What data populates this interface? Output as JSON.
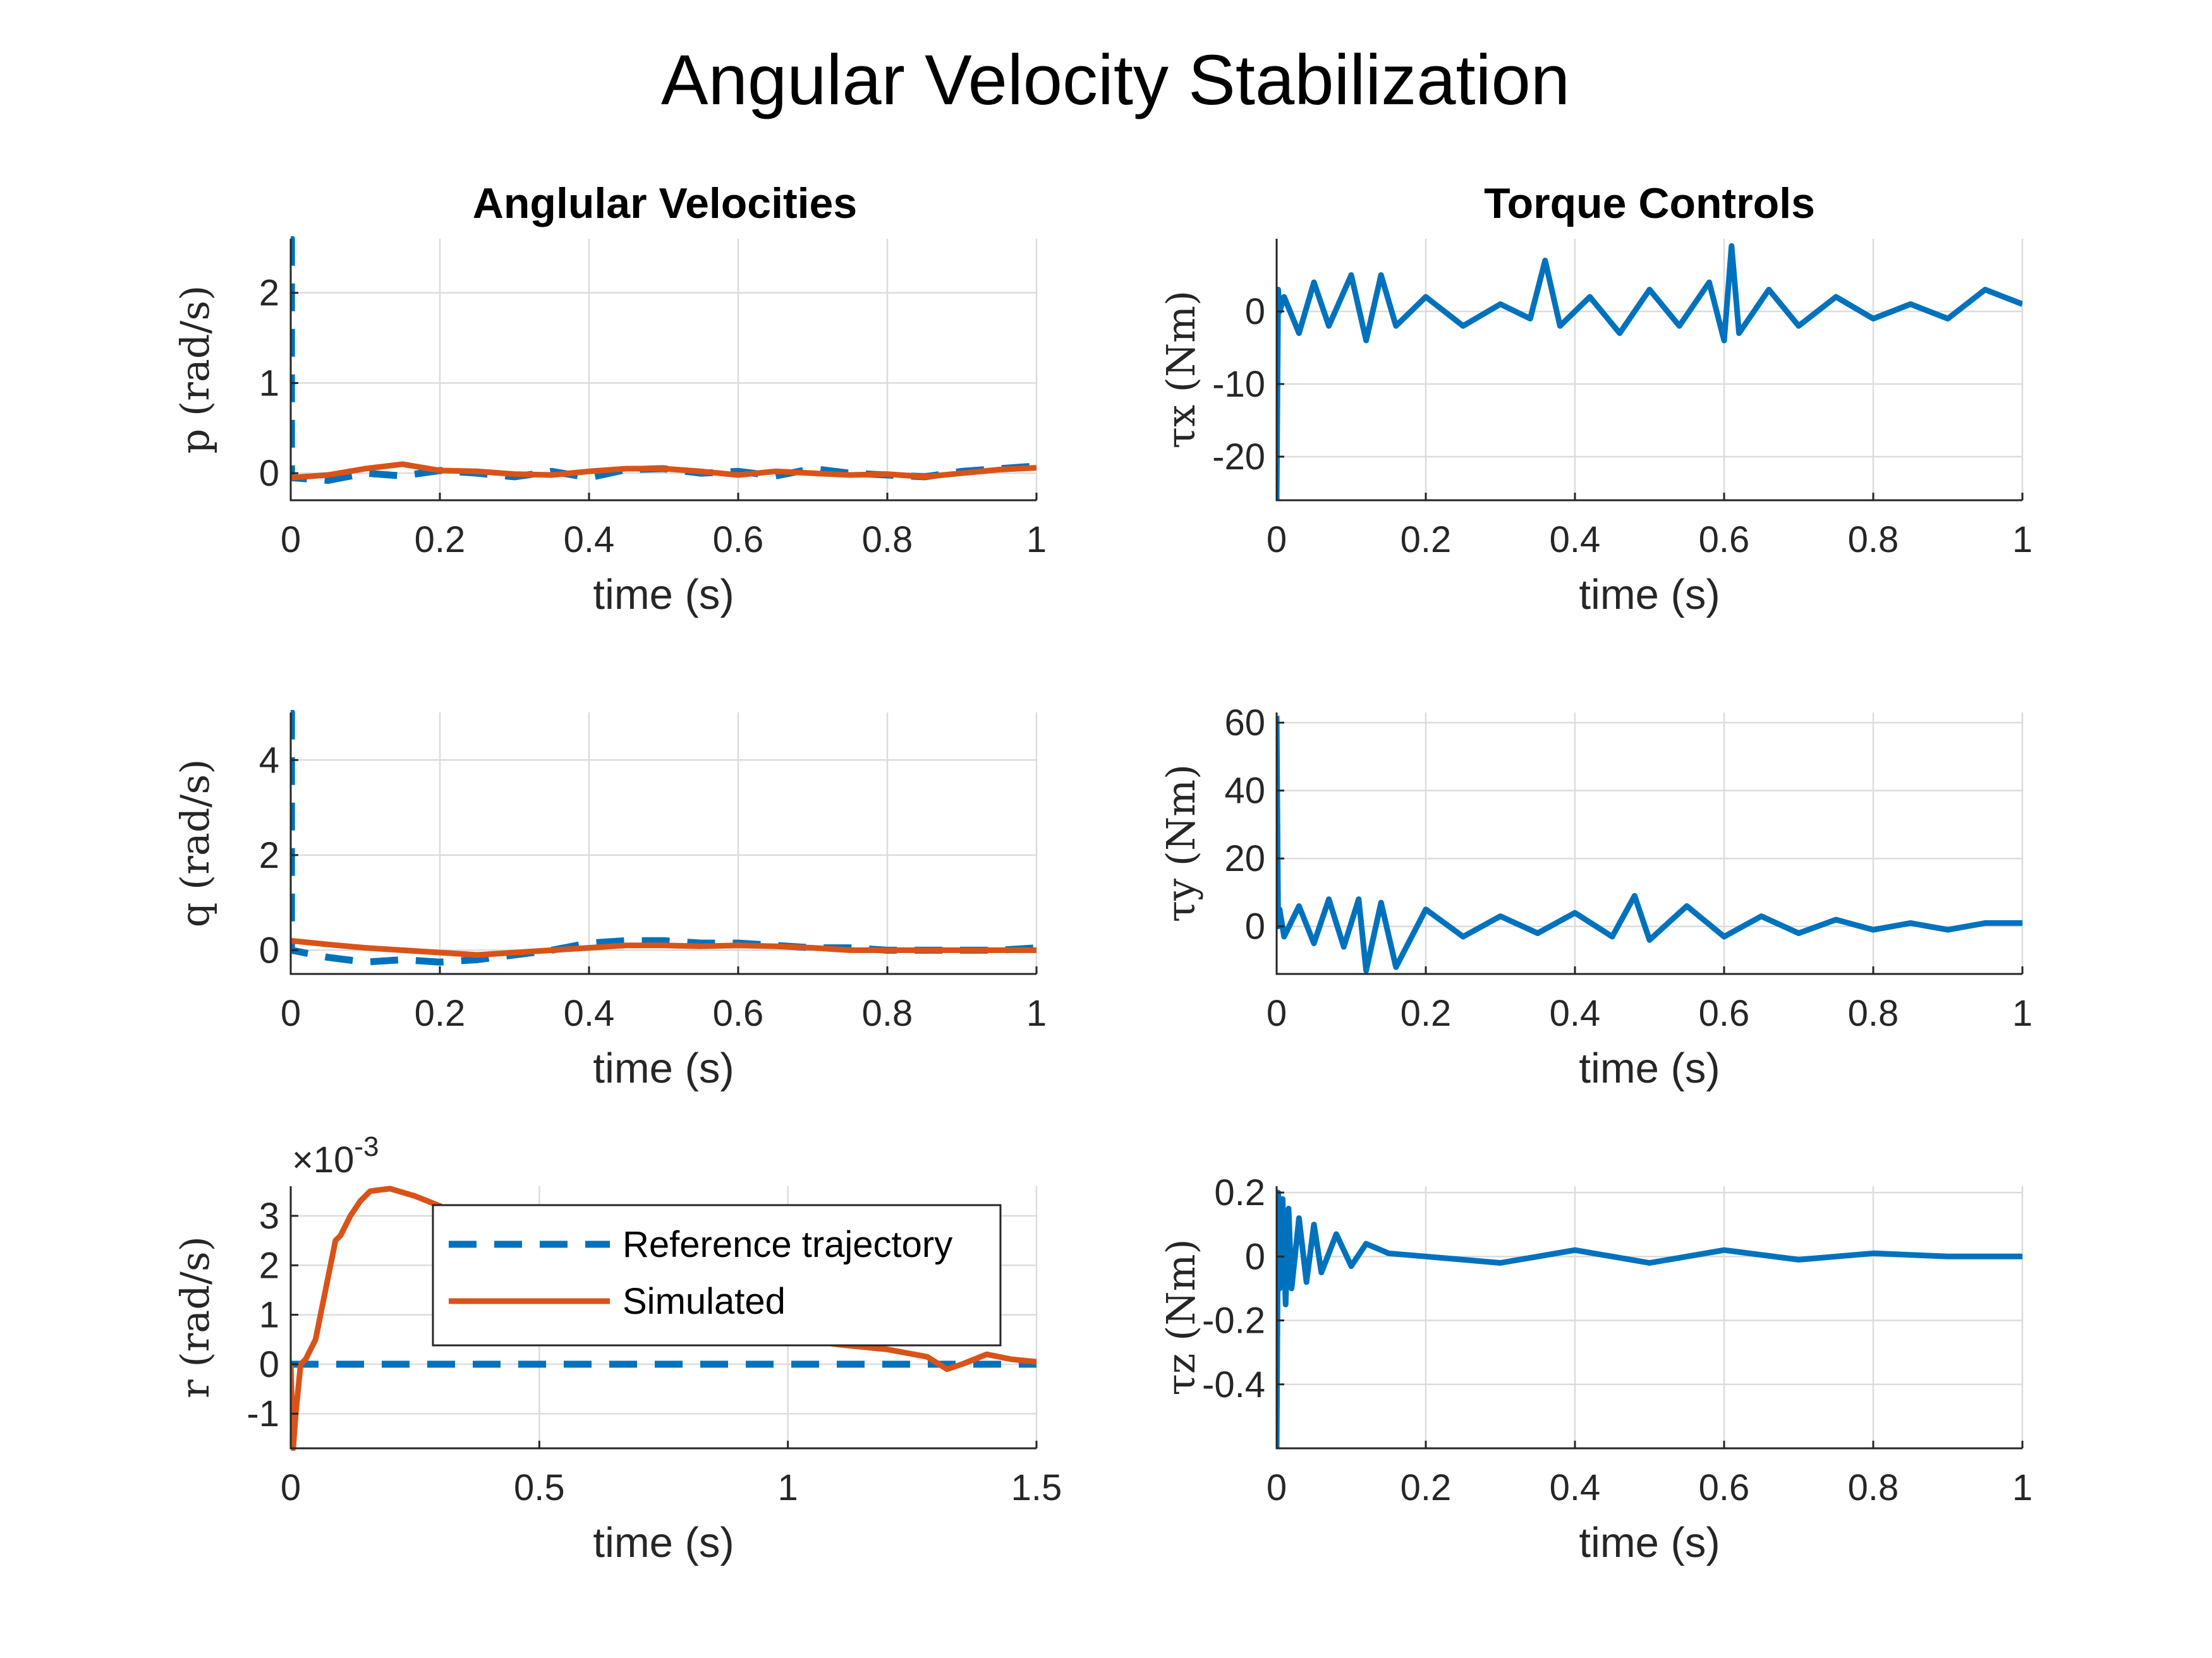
{
  "title": "Angular Velocity Stabilization",
  "column_titles": {
    "left": "Anglular Velocities",
    "right": "Torque Controls"
  },
  "colors": {
    "reference": "#0072BD",
    "simulated": "#D95319",
    "torque": "#0072BD"
  },
  "legend": {
    "entries": [
      "Reference trajectory",
      "Simulated"
    ]
  },
  "chart_data": [
    {
      "type": "line",
      "panel": "p",
      "xlabel": "time (s)",
      "ylabel": "p (rad/s)",
      "xlim": [
        0,
        1
      ],
      "ylim": [
        -0.3,
        2.6
      ],
      "xticks": [
        0,
        0.2,
        0.4,
        0.6,
        0.8,
        1
      ],
      "yticks": [
        0,
        1,
        2
      ],
      "grid": true,
      "series": [
        {
          "name": "Reference trajectory",
          "style": "dashed",
          "x": [
            0,
            0.001,
            0.001,
            0.05,
            0.1,
            0.15,
            0.2,
            0.25,
            0.3,
            0.35,
            0.4,
            0.45,
            0.5,
            0.55,
            0.6,
            0.65,
            0.7,
            0.75,
            0.8,
            0.85,
            0.9,
            0.95,
            1.0
          ],
          "y": [
            2.6,
            2.6,
            -0.05,
            -0.08,
            0.0,
            -0.03,
            0.03,
            0.0,
            -0.04,
            0.02,
            -0.05,
            0.04,
            0.05,
            0.0,
            0.02,
            -0.03,
            0.05,
            0.0,
            -0.02,
            -0.04,
            0.02,
            0.05,
            0.08
          ]
        },
        {
          "name": "Simulated",
          "style": "solid",
          "x": [
            0,
            0.05,
            0.1,
            0.15,
            0.2,
            0.25,
            0.3,
            0.35,
            0.4,
            0.45,
            0.5,
            0.55,
            0.6,
            0.65,
            0.7,
            0.75,
            0.8,
            0.85,
            0.9,
            0.95,
            1.0
          ],
          "y": [
            -0.05,
            -0.02,
            0.05,
            0.1,
            0.03,
            0.02,
            -0.01,
            -0.02,
            0.02,
            0.05,
            0.05,
            0.02,
            -0.02,
            0.02,
            0.0,
            -0.02,
            -0.01,
            -0.04,
            0.0,
            0.04,
            0.06
          ]
        }
      ]
    },
    {
      "type": "line",
      "panel": "q",
      "xlabel": "time (s)",
      "ylabel": "q (rad/s)",
      "xlim": [
        0,
        1
      ],
      "ylim": [
        -0.5,
        5.0
      ],
      "xticks": [
        0,
        0.2,
        0.4,
        0.6,
        0.8,
        1
      ],
      "yticks": [
        0,
        2,
        4
      ],
      "grid": true,
      "series": [
        {
          "name": "Reference trajectory",
          "style": "dashed",
          "x": [
            0,
            0.001,
            0.001,
            0.05,
            0.1,
            0.15,
            0.2,
            0.25,
            0.3,
            0.35,
            0.4,
            0.45,
            0.5,
            0.55,
            0.6,
            0.65,
            0.7,
            0.75,
            0.8,
            0.85,
            0.9,
            0.95,
            1.0
          ],
          "y": [
            5.0,
            5.0,
            0.0,
            -0.15,
            -0.25,
            -0.2,
            -0.25,
            -0.2,
            -0.1,
            0.0,
            0.15,
            0.2,
            0.2,
            0.15,
            0.15,
            0.1,
            0.05,
            0.05,
            0.0,
            0.0,
            0.0,
            0.0,
            0.05
          ]
        },
        {
          "name": "Simulated",
          "style": "solid",
          "x": [
            0,
            0.05,
            0.1,
            0.15,
            0.2,
            0.25,
            0.3,
            0.35,
            0.4,
            0.45,
            0.5,
            0.55,
            0.6,
            0.65,
            0.7,
            0.75,
            0.8,
            0.85,
            0.9,
            0.95,
            1.0
          ],
          "y": [
            0.2,
            0.12,
            0.05,
            0.0,
            -0.05,
            -0.1,
            -0.05,
            0.0,
            0.05,
            0.1,
            0.1,
            0.08,
            0.1,
            0.08,
            0.05,
            0.0,
            0.0,
            0.0,
            0.0,
            0.0,
            0.0
          ]
        }
      ]
    },
    {
      "type": "line",
      "panel": "r",
      "xlabel": "time (s)",
      "ylabel": "r (rad/s)",
      "multiplier_text": "×10",
      "multiplier_exponent": "-3",
      "xlim": [
        0,
        1.5
      ],
      "ylim": [
        -1.7,
        3.6
      ],
      "xticks": [
        0,
        0.5,
        1,
        1.5
      ],
      "yticks": [
        -1,
        0,
        1,
        2,
        3
      ],
      "grid": true,
      "series": [
        {
          "name": "Reference trajectory",
          "style": "dashed",
          "x": [
            0,
            1.5
          ],
          "y": [
            0,
            0
          ]
        },
        {
          "name": "Simulated",
          "style": "solid",
          "x": [
            0.0,
            0.005,
            0.01,
            0.02,
            0.03,
            0.05,
            0.07,
            0.09,
            0.1,
            0.12,
            0.14,
            0.16,
            0.2,
            0.25,
            0.3,
            0.4,
            0.6,
            0.8,
            0.95,
            1.1,
            1.2,
            1.28,
            1.32,
            1.35,
            1.4,
            1.45,
            1.5
          ],
          "y": [
            0.0,
            -1.7,
            -1.0,
            0.0,
            0.1,
            0.5,
            1.5,
            2.5,
            2.6,
            3.0,
            3.3,
            3.5,
            3.55,
            3.4,
            3.2,
            2.7,
            1.9,
            1.3,
            0.6,
            0.4,
            0.3,
            0.15,
            -0.1,
            0.0,
            0.2,
            0.1,
            0.05
          ]
        }
      ]
    },
    {
      "type": "line",
      "panel": "tau_x",
      "xlabel": "time (s)",
      "ylabel": "τx (Nm)",
      "xlim": [
        0,
        1
      ],
      "ylim": [
        -26,
        10
      ],
      "xticks": [
        0,
        0.2,
        0.4,
        0.6,
        0.8,
        1
      ],
      "yticks": [
        -20,
        -10,
        0
      ],
      "grid": true,
      "series": [
        {
          "name": "",
          "style": "solid",
          "x": [
            0.0,
            0.002,
            0.004,
            0.01,
            0.03,
            0.05,
            0.07,
            0.1,
            0.12,
            0.14,
            0.16,
            0.2,
            0.25,
            0.3,
            0.34,
            0.36,
            0.38,
            0.42,
            0.46,
            0.5,
            0.54,
            0.58,
            0.6,
            0.61,
            0.62,
            0.66,
            0.7,
            0.75,
            0.8,
            0.85,
            0.9,
            0.95,
            1.0
          ],
          "y": [
            -26,
            3,
            0,
            2,
            -3,
            4,
            -2,
            5,
            -4,
            5,
            -2,
            2,
            -2,
            1,
            -1,
            7,
            -2,
            2,
            -3,
            3,
            -2,
            4,
            -4,
            9,
            -3,
            3,
            -2,
            2,
            -1,
            1,
            -1,
            3,
            1
          ]
        }
      ]
    },
    {
      "type": "line",
      "panel": "tau_y",
      "xlabel": "time (s)",
      "ylabel": "τy (Nm)",
      "xlim": [
        0,
        1
      ],
      "ylim": [
        -14,
        63
      ],
      "xticks": [
        0,
        0.2,
        0.4,
        0.6,
        0.8,
        1
      ],
      "yticks": [
        0,
        20,
        40,
        60
      ],
      "grid": true,
      "series": [
        {
          "name": "",
          "style": "solid",
          "x": [
            0.0,
            0.002,
            0.004,
            0.01,
            0.03,
            0.05,
            0.07,
            0.09,
            0.11,
            0.12,
            0.14,
            0.16,
            0.2,
            0.25,
            0.3,
            0.35,
            0.4,
            0.45,
            0.48,
            0.5,
            0.55,
            0.6,
            0.65,
            0.7,
            0.75,
            0.8,
            0.85,
            0.9,
            0.95,
            1.0
          ],
          "y": [
            62,
            0,
            5,
            -3,
            6,
            -5,
            8,
            -6,
            8,
            -13,
            7,
            -12,
            5,
            -3,
            3,
            -2,
            4,
            -3,
            9,
            -4,
            6,
            -3,
            3,
            -2,
            2,
            -1,
            1,
            -1,
            1,
            1
          ]
        }
      ]
    },
    {
      "type": "line",
      "panel": "tau_z",
      "xlabel": "time (s)",
      "ylabel": "τz (Nm)",
      "xlim": [
        0,
        1
      ],
      "ylim": [
        -0.6,
        0.22
      ],
      "xticks": [
        0,
        0.2,
        0.4,
        0.6,
        0.8,
        1
      ],
      "yticks": [
        -0.4,
        -0.2,
        0,
        0.2
      ],
      "grid": true,
      "series": [
        {
          "name": "",
          "style": "solid",
          "x": [
            0.0,
            0.002,
            0.004,
            0.008,
            0.012,
            0.016,
            0.02,
            0.03,
            0.04,
            0.05,
            0.06,
            0.08,
            0.1,
            0.12,
            0.15,
            0.2,
            0.3,
            0.4,
            0.5,
            0.6,
            0.7,
            0.8,
            0.9,
            1.0
          ],
          "y": [
            -0.6,
            0.2,
            -0.1,
            0.18,
            -0.15,
            0.15,
            -0.1,
            0.12,
            -0.08,
            0.1,
            -0.05,
            0.07,
            -0.03,
            0.04,
            0.01,
            0.0,
            -0.02,
            0.02,
            -0.02,
            0.02,
            -0.01,
            0.01,
            0.0,
            0.0
          ]
        }
      ]
    }
  ]
}
